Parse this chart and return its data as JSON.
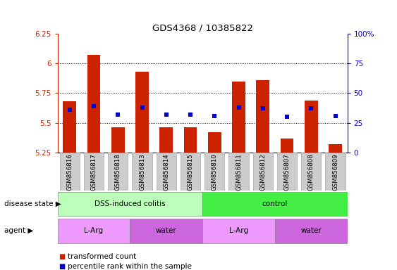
{
  "title": "GDS4368 / 10385822",
  "samples": [
    "GSM856816",
    "GSM856817",
    "GSM856818",
    "GSM856813",
    "GSM856814",
    "GSM856815",
    "GSM856810",
    "GSM856811",
    "GSM856812",
    "GSM856807",
    "GSM856808",
    "GSM856809"
  ],
  "transformed_count": [
    5.68,
    6.07,
    5.46,
    5.93,
    5.46,
    5.46,
    5.42,
    5.85,
    5.86,
    5.37,
    5.69,
    5.32
  ],
  "percentile_rank": [
    5.61,
    5.64,
    5.57,
    5.63,
    5.57,
    5.57,
    5.56,
    5.63,
    5.62,
    5.55,
    5.62,
    5.56
  ],
  "bar_bottom": 5.25,
  "ylim": [
    5.25,
    6.25
  ],
  "yticks": [
    5.25,
    5.5,
    5.75,
    6.0,
    6.25
  ],
  "ytick_labels": [
    "5.25",
    "5.5",
    "5.75",
    "6",
    "6.25"
  ],
  "y2lim": [
    0,
    100
  ],
  "y2ticks": [
    0,
    25,
    50,
    75,
    100
  ],
  "y2tick_labels": [
    "0",
    "25",
    "50",
    "75",
    "100%"
  ],
  "bar_color": "#cc2200",
  "percentile_color": "#0000cc",
  "grid_color": "#000000",
  "disease_state_groups": [
    {
      "label": "DSS-induced colitis",
      "start": 0,
      "end": 5,
      "color": "#bbffbb"
    },
    {
      "label": "control",
      "start": 6,
      "end": 11,
      "color": "#44ee44"
    }
  ],
  "agent_groups": [
    {
      "label": "L-Arg",
      "start": 0,
      "end": 2,
      "color": "#ee99ff"
    },
    {
      "label": "water",
      "start": 3,
      "end": 5,
      "color": "#cc66dd"
    },
    {
      "label": "L-Arg",
      "start": 6,
      "end": 8,
      "color": "#ee99ff"
    },
    {
      "label": "water",
      "start": 9,
      "end": 11,
      "color": "#cc66dd"
    }
  ],
  "legend_items": [
    {
      "label": "transformed count",
      "color": "#cc2200"
    },
    {
      "label": "percentile rank within the sample",
      "color": "#0000cc"
    }
  ],
  "disease_state_label": "disease state",
  "agent_label": "agent",
  "left_ytick_color": "#cc2200",
  "right_ytick_color": "#0000cc",
  "sample_box_color": "#cccccc"
}
